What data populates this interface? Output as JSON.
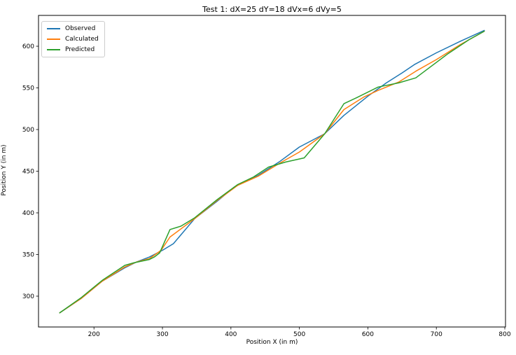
{
  "title": "Test 1: dX=25 dY=18 dVx=6 dVy=5",
  "axes": {
    "xlabel": "Position X (in m)",
    "ylabel": "Position Y (in m)",
    "xticks": [
      200,
      300,
      400,
      500,
      600,
      700,
      800
    ],
    "yticks": [
      300,
      350,
      400,
      450,
      500,
      550,
      600
    ],
    "spine_color": "#000000",
    "background": "#ffffff"
  },
  "legend": {
    "position": "upper-left",
    "items": [
      "Observed",
      "Calculated",
      "Predicted"
    ]
  },
  "chart_data": {
    "type": "line",
    "title": "Test 1: dX=25 dY=18 dVx=6 dVy=5",
    "xlabel": "Position X (in m)",
    "ylabel": "Position Y (in m)",
    "xlim": [
      119,
      801
    ],
    "ylim": [
      263,
      637
    ],
    "grid": false,
    "legend_position": "upper left",
    "series": [
      {
        "name": "Observed",
        "color": "#1f77b4",
        "points": [
          [
            150,
            280
          ],
          [
            181,
            297
          ],
          [
            212,
            318
          ],
          [
            245,
            334
          ],
          [
            262,
            341
          ],
          [
            281,
            347
          ],
          [
            300,
            355
          ],
          [
            316,
            363
          ],
          [
            347,
            393
          ],
          [
            380,
            414
          ],
          [
            405,
            431
          ],
          [
            440,
            445
          ],
          [
            472,
            462
          ],
          [
            500,
            479
          ],
          [
            537,
            495
          ],
          [
            565,
            517
          ],
          [
            600,
            540
          ],
          [
            627,
            556
          ],
          [
            650,
            568
          ],
          [
            668,
            578
          ],
          [
            700,
            592
          ],
          [
            735,
            606
          ],
          [
            770,
            619
          ]
        ]
      },
      {
        "name": "Calculated",
        "color": "#ff7f0e",
        "points": [
          [
            150,
            280
          ],
          [
            181,
            297
          ],
          [
            212,
            318
          ],
          [
            245,
            335
          ],
          [
            262,
            341
          ],
          [
            281,
            345
          ],
          [
            298,
            355
          ],
          [
            311,
            371
          ],
          [
            347,
            393
          ],
          [
            380,
            415
          ],
          [
            410,
            433
          ],
          [
            440,
            444
          ],
          [
            472,
            460
          ],
          [
            500,
            473
          ],
          [
            537,
            495
          ],
          [
            565,
            524
          ],
          [
            594,
            539
          ],
          [
            615,
            547
          ],
          [
            645,
            557
          ],
          [
            670,
            570
          ],
          [
            700,
            584
          ],
          [
            735,
            602
          ],
          [
            770,
            618
          ]
        ]
      },
      {
        "name": "Predicted",
        "color": "#2ca02c",
        "points": [
          [
            150,
            280
          ],
          [
            181,
            298
          ],
          [
            212,
            319
          ],
          [
            245,
            337
          ],
          [
            258,
            340
          ],
          [
            281,
            344
          ],
          [
            288,
            347
          ],
          [
            296,
            352
          ],
          [
            311,
            380
          ],
          [
            327,
            384
          ],
          [
            347,
            394
          ],
          [
            380,
            416
          ],
          [
            410,
            434
          ],
          [
            433,
            443
          ],
          [
            455,
            455
          ],
          [
            480,
            461
          ],
          [
            507,
            466
          ],
          [
            537,
            495
          ],
          [
            565,
            531
          ],
          [
            583,
            538
          ],
          [
            615,
            551
          ],
          [
            645,
            556
          ],
          [
            670,
            562
          ],
          [
            717,
            591
          ],
          [
            748,
            608
          ],
          [
            770,
            618
          ]
        ]
      }
    ]
  }
}
